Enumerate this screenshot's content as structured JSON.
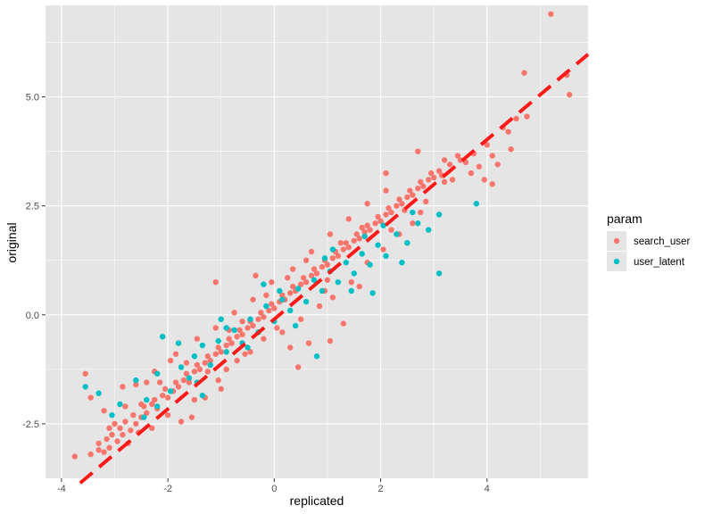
{
  "chart_data": {
    "type": "scatter",
    "title": "",
    "xlabel": "replicated",
    "ylabel": "original",
    "xlim": [
      -4.3,
      5.9
    ],
    "ylim": [
      -3.75,
      7.1
    ],
    "x_ticks": [
      -4,
      -2,
      0,
      2,
      4
    ],
    "y_ticks": [
      -2.5,
      0.0,
      2.5,
      5.0
    ],
    "x_tick_labels": [
      "-4",
      "-2",
      "0",
      "2",
      "4"
    ],
    "y_tick_labels": [
      "-2.5",
      "0.0",
      "2.5",
      "5.0"
    ],
    "grid": true,
    "legend_placement": "right",
    "legend_title": "param",
    "background": "#e5e5e5",
    "grid_color": "#ffffff",
    "reference_line": {
      "slope": 1.03,
      "intercept": -0.1,
      "color": "#ff1a1a",
      "style": "dashed"
    },
    "series": [
      {
        "name": "search_user",
        "color": "#f8766d",
        "points": [
          [
            -3.75,
            -3.25
          ],
          [
            -3.45,
            -3.2
          ],
          [
            -3.3,
            -3.1
          ],
          [
            -3.2,
            -3.15
          ],
          [
            -3.1,
            -3.05
          ],
          [
            -3.3,
            -2.95
          ],
          [
            -3.15,
            -2.85
          ],
          [
            -3.05,
            -2.75
          ],
          [
            -2.95,
            -2.9
          ],
          [
            -2.9,
            -2.6
          ],
          [
            -2.85,
            -2.75
          ],
          [
            -2.8,
            -2.45
          ],
          [
            -2.7,
            -2.65
          ],
          [
            -2.65,
            -2.3
          ],
          [
            -2.6,
            -2.5
          ],
          [
            -2.5,
            -2.35
          ],
          [
            -2.45,
            -2.1
          ],
          [
            -2.4,
            -2.25
          ],
          [
            -2.3,
            -2.05
          ],
          [
            -2.25,
            -1.95
          ],
          [
            -2.2,
            -2.15
          ],
          [
            -2.1,
            -1.85
          ],
          [
            -2.05,
            -1.7
          ],
          [
            -2.0,
            -1.9
          ],
          [
            -1.9,
            -1.75
          ],
          [
            -1.85,
            -1.55
          ],
          [
            -1.8,
            -1.65
          ],
          [
            -1.7,
            -1.5
          ],
          [
            -1.65,
            -1.35
          ],
          [
            -1.6,
            -1.55
          ],
          [
            -1.5,
            -1.3
          ],
          [
            -1.45,
            -1.15
          ],
          [
            -1.4,
            -1.25
          ],
          [
            -1.3,
            -1.1
          ],
          [
            -1.25,
            -0.95
          ],
          [
            -1.2,
            -1.05
          ],
          [
            -1.1,
            -0.9
          ],
          [
            -1.05,
            -0.75
          ],
          [
            -1.0,
            -0.85
          ],
          [
            -0.9,
            -0.7
          ],
          [
            -0.85,
            -0.55
          ],
          [
            -0.8,
            -0.65
          ],
          [
            -0.7,
            -0.5
          ],
          [
            -0.65,
            -0.35
          ],
          [
            -0.6,
            -0.45
          ],
          [
            -0.5,
            -0.3
          ],
          [
            -0.45,
            -0.15
          ],
          [
            -0.4,
            -0.25
          ],
          [
            -0.3,
            -0.1
          ],
          [
            -0.25,
            0.05
          ],
          [
            -0.2,
            -0.05
          ],
          [
            -0.1,
            0.1
          ],
          [
            -0.05,
            0.25
          ],
          [
            0.0,
            0.15
          ],
          [
            0.1,
            0.3
          ],
          [
            0.15,
            0.45
          ],
          [
            0.2,
            0.35
          ],
          [
            0.3,
            0.5
          ],
          [
            0.35,
            0.65
          ],
          [
            0.4,
            0.55
          ],
          [
            0.5,
            0.7
          ],
          [
            0.55,
            0.85
          ],
          [
            0.6,
            0.75
          ],
          [
            0.7,
            0.9
          ],
          [
            0.75,
            1.05
          ],
          [
            0.8,
            0.95
          ],
          [
            0.9,
            1.1
          ],
          [
            0.95,
            1.25
          ],
          [
            1.0,
            1.15
          ],
          [
            1.1,
            1.3
          ],
          [
            1.15,
            1.45
          ],
          [
            1.2,
            1.35
          ],
          [
            1.3,
            1.5
          ],
          [
            1.35,
            1.65
          ],
          [
            1.4,
            1.55
          ],
          [
            1.5,
            1.7
          ],
          [
            1.55,
            1.85
          ],
          [
            1.6,
            1.75
          ],
          [
            1.7,
            1.9
          ],
          [
            1.75,
            2.05
          ],
          [
            1.8,
            1.95
          ],
          [
            1.9,
            2.1
          ],
          [
            1.95,
            2.25
          ],
          [
            2.0,
            2.15
          ],
          [
            2.1,
            2.3
          ],
          [
            2.15,
            2.45
          ],
          [
            2.2,
            2.35
          ],
          [
            2.3,
            2.5
          ],
          [
            2.35,
            2.65
          ],
          [
            2.4,
            2.55
          ],
          [
            2.5,
            2.7
          ],
          [
            2.55,
            2.85
          ],
          [
            2.6,
            2.75
          ],
          [
            2.7,
            2.9
          ],
          [
            2.75,
            3.05
          ],
          [
            2.8,
            2.95
          ],
          [
            2.9,
            3.1
          ],
          [
            2.95,
            3.25
          ],
          [
            3.0,
            3.15
          ],
          [
            3.1,
            3.3
          ],
          [
            3.15,
            3.2
          ],
          [
            3.2,
            3.05
          ],
          [
            3.3,
            3.45
          ],
          [
            3.5,
            3.55
          ],
          [
            3.6,
            3.5
          ],
          [
            3.75,
            3.7
          ],
          [
            3.85,
            3.4
          ],
          [
            4.0,
            3.9
          ],
          [
            4.1,
            3.65
          ],
          [
            4.2,
            3.45
          ],
          [
            4.3,
            4.3
          ],
          [
            4.4,
            4.2
          ],
          [
            4.45,
            3.8
          ],
          [
            4.55,
            4.5
          ],
          [
            4.75,
            4.55
          ],
          [
            4.7,
            5.55
          ],
          [
            5.2,
            6.9
          ],
          [
            5.5,
            5.5
          ],
          [
            5.55,
            5.05
          ],
          [
            3.95,
            3.1
          ],
          [
            4.1,
            3.0
          ],
          [
            3.7,
            3.25
          ],
          [
            2.1,
            3.25
          ],
          [
            2.7,
            3.75
          ],
          [
            3.2,
            3.55
          ],
          [
            -3.45,
            -1.9
          ],
          [
            -3.2,
            -2.2
          ],
          [
            -3.0,
            -2.5
          ],
          [
            -2.8,
            -2.1
          ],
          [
            -2.55,
            -2.7
          ],
          [
            -2.3,
            -2.6
          ],
          [
            -2.0,
            -2.3
          ],
          [
            -1.75,
            -2.45
          ],
          [
            -1.55,
            -2.35
          ],
          [
            -1.3,
            -1.9
          ],
          [
            -1.05,
            -1.5
          ],
          [
            -0.7,
            -1.05
          ],
          [
            -0.45,
            -0.85
          ],
          [
            -0.2,
            -0.55
          ],
          [
            0.15,
            -0.4
          ],
          [
            0.5,
            -0.1
          ],
          [
            0.85,
            0.2
          ],
          [
            1.1,
            0.4
          ],
          [
            1.45,
            0.75
          ],
          [
            1.75,
            1.2
          ],
          [
            2.05,
            1.5
          ],
          [
            2.35,
            1.85
          ],
          [
            2.6,
            2.1
          ],
          [
            -2.6,
            -1.6
          ],
          [
            -2.25,
            -1.3
          ],
          [
            -1.85,
            -0.9
          ],
          [
            -1.45,
            -0.55
          ],
          [
            -1.1,
            -0.3
          ],
          [
            -0.75,
            0.05
          ],
          [
            -0.4,
            0.35
          ],
          [
            -0.05,
            0.75
          ],
          [
            0.35,
            1.05
          ],
          [
            0.7,
            1.45
          ],
          [
            1.05,
            1.85
          ],
          [
            1.4,
            2.2
          ],
          [
            1.75,
            2.55
          ],
          [
            2.1,
            2.85
          ],
          [
            -1.1,
            0.75
          ],
          [
            0.45,
            -1.2
          ],
          [
            1.05,
            -0.6
          ],
          [
            1.3,
            -0.2
          ],
          [
            0.65,
            -0.65
          ],
          [
            -0.35,
            0.9
          ],
          [
            0.3,
            -0.75
          ],
          [
            -2.85,
            -1.65
          ],
          [
            -3.55,
            -1.35
          ],
          [
            -2.4,
            -1.55
          ],
          [
            -1.5,
            -1.95
          ],
          [
            1.6,
            0.65
          ],
          [
            2.75,
            2.35
          ],
          [
            3.45,
            3.65
          ],
          [
            2.2,
            1.95
          ],
          [
            0.95,
            0.55
          ],
          [
            -0.6,
            -0.15
          ],
          [
            -1.95,
            -1.05
          ],
          [
            -3.1,
            -2.6
          ],
          [
            -2.75,
            -2.95
          ],
          [
            -2.15,
            -1.55
          ],
          [
            -1.65,
            -1.1
          ],
          [
            -1.25,
            -1.3
          ],
          [
            -0.85,
            -0.35
          ],
          [
            -0.15,
            0.45
          ],
          [
            0.25,
            0.85
          ],
          [
            0.6,
            1.25
          ],
          [
            1.25,
            1.65
          ],
          [
            1.65,
            2.0
          ],
          [
            2.45,
            2.4
          ],
          [
            2.85,
            2.6
          ],
          [
            3.35,
            3.1
          ],
          [
            1.0,
            0.8
          ],
          [
            0.05,
            -0.3
          ],
          [
            -0.55,
            -0.9
          ],
          [
            -1.0,
            -1.7
          ],
          [
            -0.9,
            -1.25
          ],
          [
            -2.5,
            -2.05
          ]
        ]
      },
      {
        "name": "user_latent",
        "color": "#00bfc4",
        "points": [
          [
            -3.55,
            -1.65
          ],
          [
            -3.3,
            -1.8
          ],
          [
            -3.05,
            -2.3
          ],
          [
            -2.9,
            -2.05
          ],
          [
            -2.6,
            -1.5
          ],
          [
            -2.4,
            -1.95
          ],
          [
            -2.2,
            -1.35
          ],
          [
            -2.1,
            -0.5
          ],
          [
            -1.95,
            -1.75
          ],
          [
            -1.75,
            -1.2
          ],
          [
            -1.6,
            -1.45
          ],
          [
            -1.5,
            -0.95
          ],
          [
            -1.35,
            -0.7
          ],
          [
            -1.2,
            -1.15
          ],
          [
            -1.05,
            -0.6
          ],
          [
            -0.9,
            -0.85
          ],
          [
            -0.75,
            -0.35
          ],
          [
            -0.6,
            -0.65
          ],
          [
            -0.45,
            -0.1
          ],
          [
            -0.3,
            -0.4
          ],
          [
            -0.15,
            0.2
          ],
          [
            0.0,
            -0.15
          ],
          [
            0.15,
            0.35
          ],
          [
            0.3,
            0.1
          ],
          [
            0.45,
            0.6
          ],
          [
            0.6,
            0.3
          ],
          [
            0.75,
            0.8
          ],
          [
            0.9,
            0.55
          ],
          [
            1.05,
            1.0
          ],
          [
            1.2,
            0.75
          ],
          [
            1.35,
            1.2
          ],
          [
            1.5,
            0.95
          ],
          [
            1.65,
            1.4
          ],
          [
            1.8,
            1.15
          ],
          [
            1.95,
            1.6
          ],
          [
            2.1,
            1.35
          ],
          [
            2.3,
            1.85
          ],
          [
            2.5,
            1.65
          ],
          [
            2.7,
            2.1
          ],
          [
            2.9,
            1.95
          ],
          [
            3.1,
            2.3
          ],
          [
            3.8,
            2.55
          ],
          [
            3.1,
            0.95
          ],
          [
            0.8,
            -0.95
          ],
          [
            1.85,
            0.5
          ],
          [
            2.4,
            1.2
          ],
          [
            1.45,
            0.55
          ],
          [
            0.4,
            -0.25
          ],
          [
            -0.5,
            -0.75
          ],
          [
            -1.45,
            -1.55
          ],
          [
            -2.2,
            -2.1
          ],
          [
            -0.9,
            -0.3
          ],
          [
            0.1,
            0.55
          ],
          [
            1.1,
            1.5
          ],
          [
            2.05,
            2.05
          ],
          [
            2.6,
            2.35
          ],
          [
            -1.8,
            -0.65
          ],
          [
            -1.0,
            -0.1
          ],
          [
            -0.2,
            0.7
          ],
          [
            0.95,
            1.3
          ],
          [
            1.7,
            1.8
          ],
          [
            -2.45,
            -2.35
          ],
          [
            -1.35,
            -1.85
          ]
        ]
      }
    ]
  }
}
